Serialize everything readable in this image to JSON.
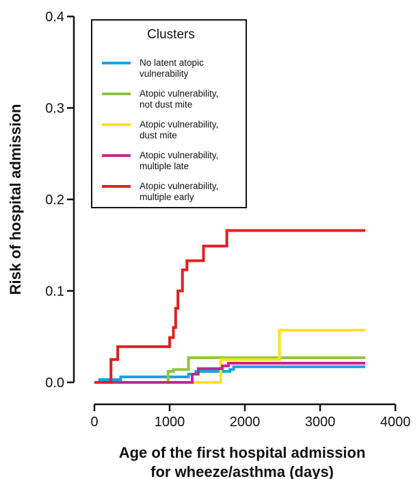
{
  "chart_data": {
    "type": "line",
    "step": true,
    "xlabel_lines": [
      "Age of the first hospital admission",
      "for wheeze/asthma (days)"
    ],
    "ylabel": "Risk of hospital admission",
    "xlim": [
      0,
      4000
    ],
    "ylim": [
      0,
      0.4
    ],
    "x_ticks": [
      0,
      1000,
      2000,
      3000,
      4000
    ],
    "x_tick_labels": [
      "0",
      "1000",
      "2000",
      "3000",
      "4000"
    ],
    "y_ticks": [
      0.0,
      0.1,
      0.2,
      0.3,
      0.4
    ],
    "y_tick_labels": [
      "0.0",
      "0.1",
      "0.2",
      "0.3",
      "0.4"
    ],
    "grid": false,
    "legend": {
      "title": "Clusters",
      "placement": "top-left"
    },
    "series": [
      {
        "name": "No latent atopic vulnerability",
        "legend_lines": [
          "No latent atopic",
          "vulnerability"
        ],
        "color": "#1aa3e0",
        "points": [
          [
            0,
            0
          ],
          [
            70,
            0.003
          ],
          [
            350,
            0.006
          ],
          [
            1250,
            0.009
          ],
          [
            1350,
            0.012
          ],
          [
            1800,
            0.014
          ],
          [
            1850,
            0.017
          ],
          [
            3600,
            0.017
          ]
        ]
      },
      {
        "name": "Atopic vulnerability, not dust mite",
        "legend_lines": [
          "Atopic vulnerability,",
          "not dust mite"
        ],
        "color": "#8dc63f",
        "points": [
          [
            0,
            0
          ],
          [
            980,
            0.012
          ],
          [
            1050,
            0.014
          ],
          [
            1250,
            0.027
          ],
          [
            3600,
            0.027
          ]
        ]
      },
      {
        "name": "Atopic vulnerability, dust mite",
        "legend_lines": [
          "Atopic vulnerability,",
          "dust mite"
        ],
        "color": "#ffe21a",
        "points": [
          [
            0,
            0
          ],
          [
            1580,
            0.0
          ],
          [
            1680,
            0.025
          ],
          [
            2450,
            0.025
          ],
          [
            2460,
            0.057
          ],
          [
            3600,
            0.057
          ]
        ]
      },
      {
        "name": "Atopic vulnerability, multiple late",
        "legend_lines": [
          "Atopic vulnerability,",
          "multiple late"
        ],
        "color": "#c2288e",
        "points": [
          [
            0,
            0
          ],
          [
            1300,
            0.009
          ],
          [
            1380,
            0.015
          ],
          [
            1700,
            0.018
          ],
          [
            1780,
            0.021
          ],
          [
            3600,
            0.021
          ]
        ]
      },
      {
        "name": "Atopic vulnerability, multiple early",
        "legend_lines": [
          "Atopic vulnerability,",
          "multiple early"
        ],
        "color": "#e41e1e",
        "points": [
          [
            0,
            0
          ],
          [
            220,
            0.025
          ],
          [
            310,
            0.039
          ],
          [
            1000,
            0.049
          ],
          [
            1050,
            0.06
          ],
          [
            1080,
            0.081
          ],
          [
            1110,
            0.1
          ],
          [
            1170,
            0.123
          ],
          [
            1230,
            0.133
          ],
          [
            1450,
            0.149
          ],
          [
            1760,
            0.166
          ],
          [
            3600,
            0.166
          ]
        ]
      }
    ]
  }
}
